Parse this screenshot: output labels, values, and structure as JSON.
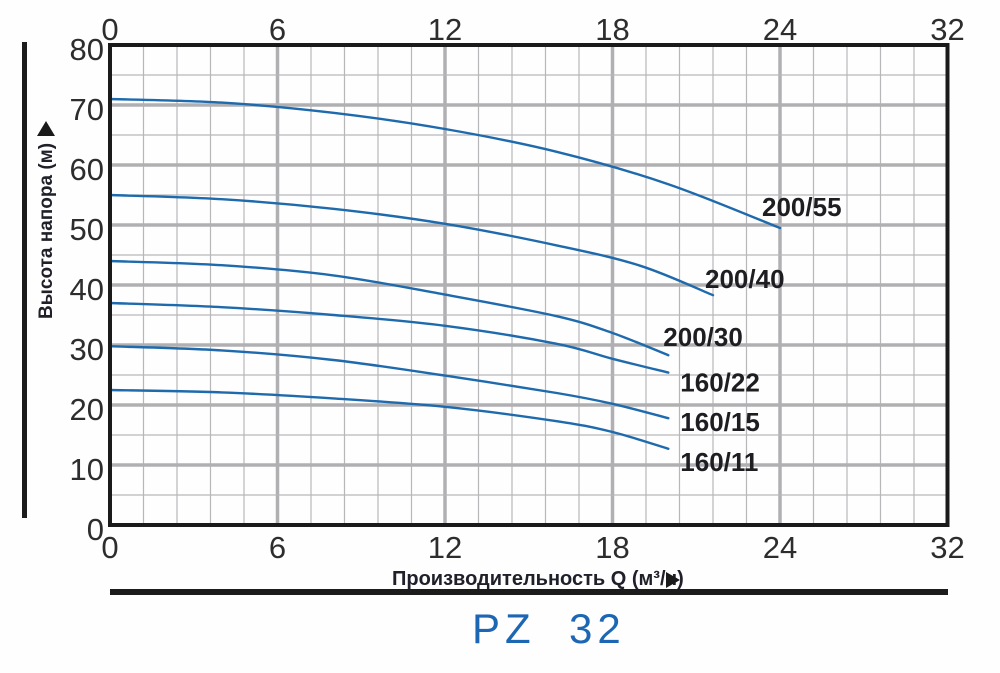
{
  "display": {
    "title_display": "PZ  32"
  },
  "chart_data": {
    "type": "line",
    "title": "PZ 32",
    "xlabel": "Производительность Q (м³/ч)",
    "ylabel": "Высота напора (м)",
    "x_tick_labels": [
      "0",
      "6",
      "12",
      "18",
      "24",
      "32"
    ],
    "y_tick_labels": [
      "0",
      "10",
      "20",
      "30",
      "40",
      "50",
      "60",
      "70",
      "80"
    ],
    "ylim": [
      0,
      80
    ],
    "xlim": [
      0,
      32
    ],
    "grid": "major and minor gridlines on",
    "axis_note": "x ticks evenly spaced; curve labels printed at line ends; x-axis arrow right, y-axis arrow up",
    "series": [
      {
        "name": "200/55",
        "points": [
          [
            0,
            71
          ],
          [
            4,
            70.4
          ],
          [
            8,
            68.7
          ],
          [
            12,
            66
          ],
          [
            16,
            62.2
          ],
          [
            20,
            56.8
          ],
          [
            24,
            49.5
          ]
        ]
      },
      {
        "name": "200/40",
        "points": [
          [
            0,
            55
          ],
          [
            4,
            54.3
          ],
          [
            8,
            52.7
          ],
          [
            12,
            50.2
          ],
          [
            16,
            46.6
          ],
          [
            19,
            43.2
          ],
          [
            21.6,
            38.3
          ]
        ]
      },
      {
        "name": "200/30",
        "points": [
          [
            0,
            44
          ],
          [
            4,
            43.3
          ],
          [
            8,
            41.6
          ],
          [
            12,
            38.4
          ],
          [
            16,
            34.8
          ],
          [
            18,
            32
          ],
          [
            20,
            28.3
          ]
        ]
      },
      {
        "name": "160/22",
        "points": [
          [
            0,
            37
          ],
          [
            4,
            36.3
          ],
          [
            8,
            35
          ],
          [
            12,
            33.2
          ],
          [
            16,
            30.2
          ],
          [
            18,
            27.7
          ],
          [
            20,
            25.4
          ]
        ]
      },
      {
        "name": "160/15",
        "points": [
          [
            0,
            29.8
          ],
          [
            4,
            29.1
          ],
          [
            8,
            27.5
          ],
          [
            12,
            24.9
          ],
          [
            16,
            22
          ],
          [
            18,
            20.2
          ],
          [
            20,
            17.8
          ]
        ]
      },
      {
        "name": "160/11",
        "points": [
          [
            0,
            22.5
          ],
          [
            4,
            22.1
          ],
          [
            8,
            21.1
          ],
          [
            12,
            19.7
          ],
          [
            16,
            17.3
          ],
          [
            18,
            15.5
          ],
          [
            20,
            12.7
          ]
        ]
      }
    ],
    "colors": {
      "curve": "#1e6aad",
      "title": "#1c66b4",
      "grid_major": "#b0b0b3",
      "grid_minor": "#b7b7ba",
      "border": "#1a1a1a",
      "tick_label": "#2d2d2f",
      "curve_label": "#1e1e22",
      "axis_title": "#20202a"
    }
  }
}
